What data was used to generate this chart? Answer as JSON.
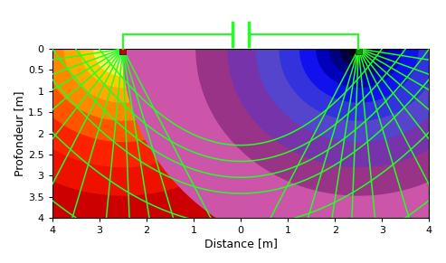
{
  "xlabel": "Distance [m]",
  "ylabel": "Profondeur [m]",
  "xlim": [
    -4,
    4
  ],
  "ylim": [
    4,
    0
  ],
  "figsize": [
    4.93,
    2.91
  ],
  "dpi": 100,
  "elec_left_x": -2.5,
  "elec_right_x": 2.5,
  "bg_color": "#dd1100",
  "left_colors": [
    "#ffffff",
    "#fffff0",
    "#ffffa0",
    "#ffee55",
    "#ffcc00",
    "#ffaa00",
    "#ff8800",
    "#ff5500",
    "#ff2200",
    "#ee1100",
    "#cc0000"
  ],
  "left_radii": [
    0.1,
    0.22,
    0.4,
    0.62,
    0.9,
    1.25,
    1.68,
    2.18,
    2.78,
    3.45,
    5.0
  ],
  "right_colors": [
    "#000000",
    "#000015",
    "#000040",
    "#000080",
    "#0000bb",
    "#1111ee",
    "#3333dd",
    "#5544cc",
    "#7733aa",
    "#993388",
    "#cc55aa"
  ],
  "right_radii": [
    0.1,
    0.22,
    0.4,
    0.62,
    0.9,
    1.25,
    1.68,
    2.18,
    2.78,
    3.45,
    5.0
  ],
  "line_color": "#22ff22",
  "lw": 1.1,
  "ray_angles_left_deg": [
    170,
    158,
    147,
    136,
    125,
    115,
    105,
    95,
    88,
    82,
    75,
    65
  ],
  "ray_angles_right_deg": [
    10,
    22,
    33,
    44,
    55,
    65,
    75,
    85,
    92,
    98,
    105,
    115
  ],
  "arc_separations": [
    0.5,
    1.0,
    1.5,
    2.0,
    3.0,
    4.5
  ],
  "elec_left_color": "#cc0000",
  "elec_right_color": "#009900"
}
